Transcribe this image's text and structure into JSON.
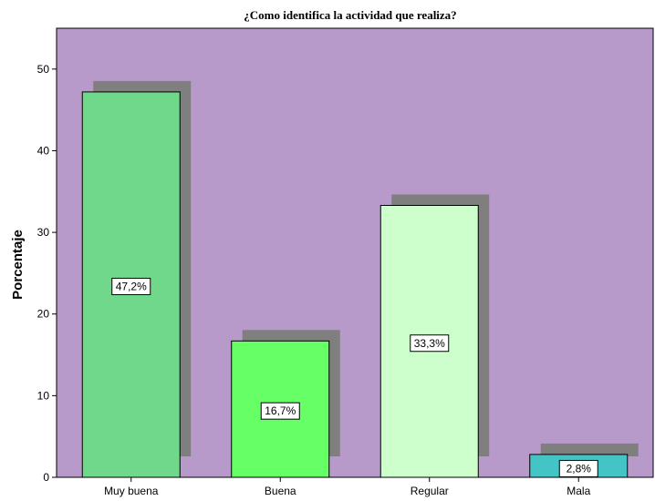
{
  "chart_data": {
    "type": "bar",
    "title": "¿Como identifica la actividad que realiza?",
    "xlabel": "",
    "ylabel": "Porcentaje",
    "categories": [
      "Muy buena",
      "Buena",
      "Regular",
      "Mala"
    ],
    "values": [
      47.2,
      16.7,
      33.3,
      2.8
    ],
    "data_labels": [
      "47,2%",
      "16,7%",
      "33,3%",
      "2,8%"
    ],
    "ylim": [
      0,
      55
    ],
    "yticks": [
      0,
      10,
      20,
      30,
      40,
      50
    ],
    "bar_colors": [
      "#6fd88a",
      "#66ff66",
      "#ccffcc",
      "#44c4c4"
    ],
    "shadow_color": "#7f7f7f",
    "plot_background": "#b89aca",
    "grid": false,
    "legend": "none"
  }
}
